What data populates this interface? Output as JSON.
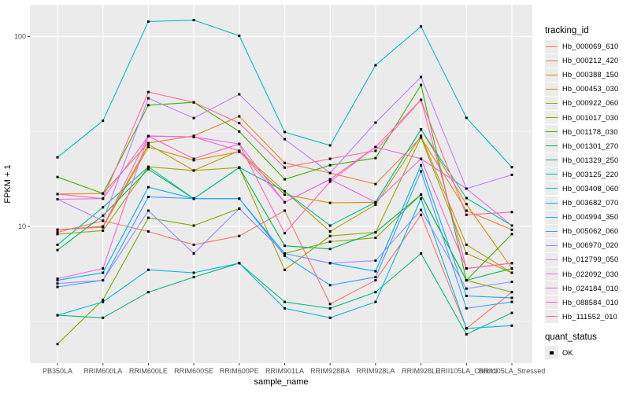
{
  "chart_data": {
    "type": "line",
    "title": "",
    "xlabel": "sample_name",
    "ylabel": "FPKM + 1",
    "y_scale": "log10",
    "ylim": [
      1.9,
      147
    ],
    "grid": true,
    "panel_background": "#EBEBEB",
    "gridline_color": "#FFFFFF",
    "tick_label_color": "#4D4D4D",
    "axis_title_color": "#000000",
    "point_color": "#000000",
    "y_ticks": [
      {
        "value": 100,
        "label": "100"
      },
      {
        "value": 10,
        "label": "10"
      }
    ],
    "y_minor_ticks": [
      31.62,
      3.162
    ],
    "categories": [
      "PB350LA",
      "RRIM600LA",
      "RRIM600LE",
      "RRIM600SE",
      "RRIM600PE",
      "RRIM901LA",
      "RRIM928BA",
      "RRIM928LA",
      "RRIM928LE",
      "RRII105LA_Control",
      "RRII105LA_Stressed"
    ],
    "legend": {
      "title": "tracking_id",
      "position": "right"
    },
    "quant_legend": {
      "title": "quant_status",
      "items": [
        {
          "label": "OK",
          "marker": "black-square"
        }
      ]
    },
    "series": [
      {
        "name": "Hb_000069_610",
        "color": "#F8766D",
        "values": [
          9.3,
          10.7,
          9.4,
          8.0,
          8.9,
          12.1,
          3.9,
          5.2,
          11.5,
          2.9,
          4.5
        ]
      },
      {
        "name": "Hb_000212_420",
        "color": "#EA8331",
        "values": [
          14.8,
          14.9,
          27.5,
          30.0,
          38.0,
          21.6,
          19.1,
          16.7,
          29.4,
          12.1,
          9.6
        ]
      },
      {
        "name": "Hb_000388_150",
        "color": "#D89000",
        "values": [
          9.6,
          9.9,
          26.2,
          22.3,
          24.7,
          14.7,
          13.3,
          13.4,
          32.4,
          13.1,
          6.0
        ]
      },
      {
        "name": "Hb_000453_030",
        "color": "#C09B00",
        "values": [
          9.6,
          10.0,
          27.0,
          19.7,
          25.0,
          15.3,
          9.4,
          13.0,
          30.0,
          8.0,
          5.7
        ]
      },
      {
        "name": "Hb_000922_060",
        "color": "#A3A500",
        "values": [
          9.1,
          9.5,
          20.6,
          19.7,
          20.4,
          5.9,
          8.9,
          9.3,
          29.4,
          7.2,
          5.7
        ]
      },
      {
        "name": "Hb_001017_030",
        "color": "#7CAE00",
        "values": [
          2.4,
          4.1,
          11.1,
          10.1,
          12.4,
          7.2,
          8.3,
          8.7,
          14.7,
          5.2,
          4.5
        ]
      },
      {
        "name": "Hb_001178_030",
        "color": "#39B600",
        "values": [
          18.2,
          14.9,
          43.5,
          45.0,
          31.6,
          17.7,
          21.0,
          22.9,
          55.6,
          5.2,
          9.1
        ]
      },
      {
        "name": "Hb_001301_270",
        "color": "#00BB4E",
        "values": [
          7.5,
          11.4,
          20.0,
          14.0,
          20.4,
          7.9,
          7.6,
          9.3,
          14.7,
          5.2,
          6.0
        ]
      },
      {
        "name": "Hb_001329_250",
        "color": "#00BF7D",
        "values": [
          3.4,
          3.3,
          4.5,
          5.4,
          6.4,
          4.0,
          3.7,
          4.5,
          7.2,
          2.7,
          3.5
        ]
      },
      {
        "name": "Hb_003125_220",
        "color": "#00C1A3",
        "values": [
          8.0,
          12.6,
          20.6,
          14.0,
          20.4,
          15.3,
          10.1,
          13.4,
          32.4,
          14.1,
          10.1
        ]
      },
      {
        "name": "Hb_003408_060",
        "color": "#00BFC4",
        "values": [
          23.1,
          36.0,
          120.0,
          122.0,
          101.0,
          31.4,
          26.7,
          70.6,
          113.0,
          37.3,
          20.5
        ]
      },
      {
        "name": "Hb_003682_070",
        "color": "#00BAE0",
        "values": [
          3.4,
          4.0,
          5.9,
          5.7,
          6.4,
          3.7,
          3.3,
          4.0,
          14.0,
          2.9,
          3.0
        ]
      },
      {
        "name": "Hb_004994_350",
        "color": "#00B0F6",
        "values": [
          5.2,
          5.7,
          16.1,
          14.0,
          14.0,
          7.2,
          6.4,
          5.8,
          21.0,
          4.3,
          4.2
        ]
      },
      {
        "name": "Hb_005062_060",
        "color": "#35A2FF",
        "values": [
          4.8,
          5.2,
          14.3,
          14.0,
          14.0,
          7.0,
          4.9,
          5.4,
          19.5,
          3.7,
          4.0
        ]
      },
      {
        "name": "Hb_006970_020",
        "color": "#9590FF",
        "values": [
          5.0,
          5.2,
          12.1,
          7.2,
          12.4,
          7.2,
          6.4,
          6.6,
          12.2,
          4.7,
          5.1
        ]
      },
      {
        "name": "Hb_012799_050",
        "color": "#C77CFF",
        "values": [
          13.9,
          10.7,
          47.3,
          37.2,
          49.6,
          28.8,
          19.1,
          35.2,
          61.2,
          15.8,
          18.7
        ]
      },
      {
        "name": "Hb_022092_030",
        "color": "#E76BF3",
        "values": [
          13.9,
          14.0,
          29.9,
          29.6,
          27.2,
          13.4,
          17.7,
          13.4,
          22.7,
          15.8,
          10.1
        ]
      },
      {
        "name": "Hb_024184_010",
        "color": "#FA62DB",
        "values": [
          5.3,
          6.0,
          29.9,
          29.6,
          25.0,
          13.4,
          17.7,
          26.2,
          22.7,
          6.0,
          6.4
        ]
      },
      {
        "name": "Hb_088584_010",
        "color": "#FF62BC",
        "values": [
          9.6,
          9.9,
          29.9,
          22.7,
          27.2,
          9.2,
          17.2,
          26.2,
          46.4,
          6.0,
          6.4
        ]
      },
      {
        "name": "Hb_111552_010",
        "color": "#FF6A98",
        "values": [
          14.8,
          14.0,
          51.0,
          45.0,
          35.0,
          20.4,
          22.7,
          25.0,
          46.4,
          11.5,
          11.9
        ]
      }
    ]
  }
}
